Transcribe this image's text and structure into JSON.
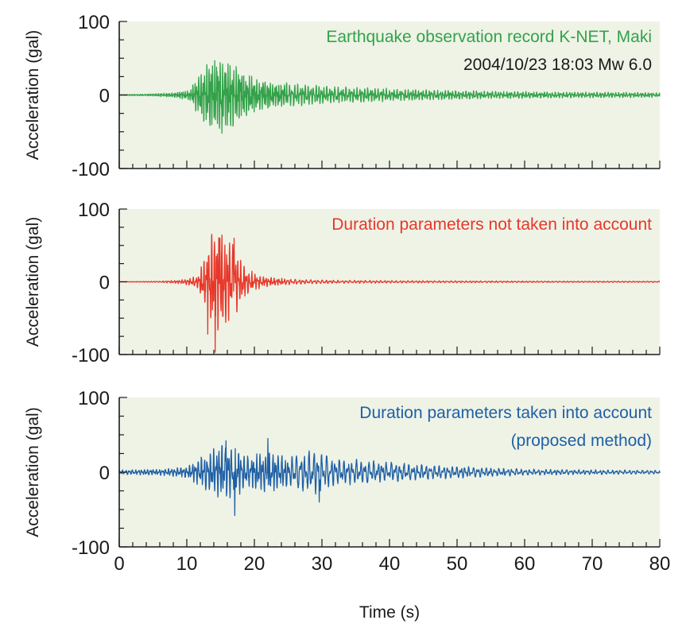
{
  "chart_data": [
    {
      "type": "line",
      "ylabel": "Acceleration (gal)",
      "xlim": [
        0,
        80
      ],
      "ylim": [
        -100,
        100
      ],
      "y_ticks": [
        "100",
        "0",
        "-100"
      ],
      "background_color": "#eef3e6",
      "series": [
        {
          "color": "#33a24a",
          "envelope": {
            "points": [
              [
                0,
                0.6
              ],
              [
                4,
                1.2
              ],
              [
                8,
                3
              ],
              [
                10.5,
                7
              ],
              [
                12,
                32
              ],
              [
                13.5,
                45
              ],
              [
                15,
                50
              ],
              [
                16.5,
                44
              ],
              [
                18,
                34
              ],
              [
                20,
                22
              ],
              [
                23,
                17
              ],
              [
                27,
                14
              ],
              [
                32,
                11
              ],
              [
                38,
                9
              ],
              [
                45,
                7
              ],
              [
                55,
                5
              ],
              [
                65,
                4
              ],
              [
                75,
                3.5
              ],
              [
                80,
                3
              ]
            ]
          },
          "extremes": [
            {
              "x": 15.2,
              "y": -52
            },
            {
              "x": 16.4,
              "y": 40
            },
            {
              "x": 14.4,
              "y": 38
            }
          ],
          "freq_hz": 2.4,
          "end_value": -2
        }
      ],
      "annotations": [
        {
          "text": "Earthquake observation record K-NET, Maki",
          "color": "#33a24a",
          "align": "right",
          "line": 1
        },
        {
          "text": "2004/10/23 18:03 Mw 6.0",
          "color": "#1a1a1a",
          "align": "right",
          "line": 2
        }
      ]
    },
    {
      "type": "line",
      "ylabel": "Acceleration (gal)",
      "xlim": [
        0,
        80
      ],
      "ylim": [
        -100,
        100
      ],
      "y_ticks": [
        "100",
        "0",
        "-100"
      ],
      "background_color": "#eef3e6",
      "series": [
        {
          "color": "#e8372a",
          "envelope": {
            "points": [
              [
                0,
                0.3
              ],
              [
                6,
                0.8
              ],
              [
                9,
                2.5
              ],
              [
                11.5,
                7
              ],
              [
                12.5,
                30
              ],
              [
                13.5,
                62
              ],
              [
                14.5,
                75
              ],
              [
                16,
                62
              ],
              [
                17.3,
                42
              ],
              [
                19,
                16
              ],
              [
                21,
                8
              ],
              [
                23,
                5
              ],
              [
                27,
                3
              ],
              [
                33,
                2
              ],
              [
                45,
                1.5
              ],
              [
                60,
                1
              ],
              [
                80,
                0.8
              ]
            ]
          },
          "extremes": [
            {
              "x": 14.2,
              "y": -97
            },
            {
              "x": 14.9,
              "y": 60
            },
            {
              "x": 17.0,
              "y": 60
            },
            {
              "x": 13.1,
              "y": -72
            }
          ],
          "freq_hz": 1.7,
          "end_value": 0
        }
      ],
      "annotations": [
        {
          "text": "Duration parameters not taken into account",
          "color": "#e8372a",
          "align": "right",
          "line": 1
        }
      ]
    },
    {
      "type": "line",
      "ylabel": "Acceleration (gal)",
      "xlabel": "Time (s)",
      "xlim": [
        0,
        80
      ],
      "ylim": [
        -100,
        100
      ],
      "y_ticks": [
        "100",
        "0",
        "-100"
      ],
      "x_ticks": [
        "0",
        "10",
        "20",
        "30",
        "40",
        "50",
        "60",
        "70",
        "80"
      ],
      "background_color": "#eef3e6",
      "series": [
        {
          "color": "#1f5fa6",
          "envelope": {
            "points": [
              [
                0,
                3
              ],
              [
                6,
                4
              ],
              [
                10,
                7
              ],
              [
                12.5,
                22
              ],
              [
                14,
                32
              ],
              [
                16,
                38
              ],
              [
                17.5,
                32
              ],
              [
                19,
                20
              ],
              [
                22,
                28
              ],
              [
                25,
                20
              ],
              [
                29,
                30
              ],
              [
                32,
                18
              ],
              [
                38,
                14
              ],
              [
                45,
                10
              ],
              [
                52,
                7
              ],
              [
                60,
                4
              ],
              [
                70,
                3
              ],
              [
                80,
                2.5
              ]
            ]
          },
          "extremes": [
            {
              "x": 17.1,
              "y": -58
            },
            {
              "x": 22.0,
              "y": 45
            },
            {
              "x": 29.6,
              "y": -40
            },
            {
              "x": 15.8,
              "y": 42
            }
          ],
          "freq_hz": 1.5,
          "end_value": -1
        }
      ],
      "annotations": [
        {
          "text": "Duration parameters taken into account",
          "color": "#1f5fa6",
          "align": "right",
          "line": 1
        },
        {
          "text": "(proposed method)",
          "color": "#1f5fa6",
          "align": "right",
          "line": 2
        }
      ]
    }
  ]
}
